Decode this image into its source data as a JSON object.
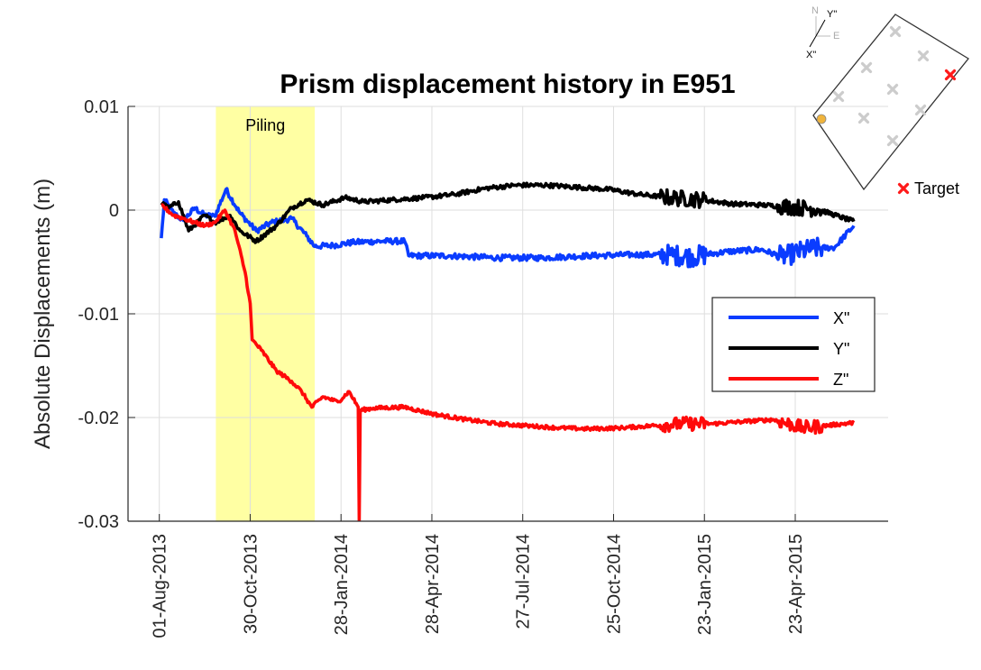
{
  "chart_data": {
    "type": "line",
    "title": "Prism displacement history in E951",
    "ylabel": "Absolute Displacements (m)",
    "xlabel": "",
    "ylim": [
      -0.03,
      0.01
    ],
    "xlim": [
      "2013-07-01",
      "2015-07-24"
    ],
    "yticks": [
      {
        "value": 0.01,
        "label": "0.01"
      },
      {
        "value": 0,
        "label": "0"
      },
      {
        "value": -0.01,
        "label": "-0.01"
      },
      {
        "value": -0.02,
        "label": "-0.02"
      },
      {
        "value": -0.03,
        "label": "-0.03"
      }
    ],
    "xticks": [
      {
        "date": "2013-08-01",
        "label": "01-Aug-2013"
      },
      {
        "date": "2013-10-30",
        "label": "30-Oct-2013"
      },
      {
        "date": "2014-01-28",
        "label": "28-Jan-2014"
      },
      {
        "date": "2014-04-28",
        "label": "28-Apr-2014"
      },
      {
        "date": "2014-07-27",
        "label": "27-Jul-2014"
      },
      {
        "date": "2014-10-25",
        "label": "25-Oct-2014"
      },
      {
        "date": "2015-01-23",
        "label": "23-Jan-2015"
      },
      {
        "date": "2015-04-23",
        "label": "23-Apr-2015"
      }
    ],
    "grid": true,
    "legend_position": "right",
    "shaded_region": {
      "start": "2013-09-26",
      "end": "2014-01-02",
      "label": "Piling",
      "color": "#ffff99"
    },
    "series": [
      {
        "name": "X\"",
        "color": "#0a3cff",
        "noise": 0.0009,
        "points": [
          [
            "2013-08-03",
            -0.0027
          ],
          [
            "2013-08-06",
            0.001
          ],
          [
            "2013-08-15",
            -0.0003
          ],
          [
            "2013-08-25",
            -0.001
          ],
          [
            "2013-09-05",
            0.0002
          ],
          [
            "2013-09-15",
            -0.0005
          ],
          [
            "2013-09-25",
            -0.0006
          ],
          [
            "2013-10-06",
            0.002
          ],
          [
            "2013-10-20",
            -0.0003
          ],
          [
            "2013-11-05",
            -0.002
          ],
          [
            "2013-11-20",
            -0.0012
          ],
          [
            "2013-12-10",
            -0.0008
          ],
          [
            "2013-12-25",
            -0.0025
          ],
          [
            "2014-01-02",
            -0.0035
          ],
          [
            "2014-01-20",
            -0.0034
          ],
          [
            "2014-02-10",
            -0.0031
          ],
          [
            "2014-03-10",
            -0.003
          ],
          [
            "2014-04-01",
            -0.003
          ],
          [
            "2014-04-05",
            -0.0044
          ],
          [
            "2014-05-15",
            -0.0044
          ],
          [
            "2014-07-01",
            -0.0046
          ],
          [
            "2014-08-15",
            -0.0046
          ],
          [
            "2014-10-01",
            -0.0044
          ],
          [
            "2014-11-15",
            -0.0043
          ],
          [
            "2014-12-20",
            -0.0043
          ],
          [
            "2015-01-10",
            -0.0045
          ],
          [
            "2015-02-15",
            -0.004
          ],
          [
            "2015-03-20",
            -0.0038
          ],
          [
            "2015-04-10",
            -0.0045
          ],
          [
            "2015-05-10",
            -0.0037
          ],
          [
            "2015-06-01",
            -0.0036
          ],
          [
            "2015-06-20",
            -0.0015
          ]
        ]
      },
      {
        "name": "Y\"",
        "color": "#000000",
        "noise": 0.0007,
        "points": [
          [
            "2013-08-03",
            0.0007
          ],
          [
            "2013-08-10",
            0.0002
          ],
          [
            "2013-08-20",
            0.0008
          ],
          [
            "2013-08-30",
            -0.002
          ],
          [
            "2013-09-15",
            -0.0005
          ],
          [
            "2013-09-25",
            -0.0012
          ],
          [
            "2013-10-10",
            -0.0005
          ],
          [
            "2013-10-20",
            -0.002
          ],
          [
            "2013-11-05",
            -0.003
          ],
          [
            "2013-11-25",
            -0.0015
          ],
          [
            "2013-12-10",
            0.0002
          ],
          [
            "2013-12-25",
            0.001
          ],
          [
            "2014-01-10",
            0.0005
          ],
          [
            "2014-02-01",
            0.0012
          ],
          [
            "2014-02-20",
            0.0008
          ],
          [
            "2014-03-20",
            0.001
          ],
          [
            "2014-04-20",
            0.0012
          ],
          [
            "2014-05-20",
            0.0015
          ],
          [
            "2014-06-20",
            0.0021
          ],
          [
            "2014-07-20",
            0.0024
          ],
          [
            "2014-08-20",
            0.0024
          ],
          [
            "2014-09-20",
            0.0022
          ],
          [
            "2014-10-20",
            0.002
          ],
          [
            "2014-11-20",
            0.0015
          ],
          [
            "2014-12-20",
            0.0012
          ],
          [
            "2015-01-20",
            0.001
          ],
          [
            "2015-02-20",
            0.0006
          ],
          [
            "2015-03-20",
            0.0005
          ],
          [
            "2015-04-20",
            0.0003
          ],
          [
            "2015-05-15",
            0.0001
          ],
          [
            "2015-06-20",
            -0.0011
          ]
        ]
      },
      {
        "name": "Z\"",
        "color": "#ff0a0a",
        "noise": 0.0006,
        "points": [
          [
            "2013-08-03",
            0.0005
          ],
          [
            "2013-08-15",
            -0.0005
          ],
          [
            "2013-08-25",
            -0.0008
          ],
          [
            "2013-09-05",
            -0.0012
          ],
          [
            "2013-09-15",
            -0.0015
          ],
          [
            "2013-09-25",
            -0.0012
          ],
          [
            "2013-10-05",
            0.0
          ],
          [
            "2013-10-15",
            -0.002
          ],
          [
            "2013-10-25",
            -0.006
          ],
          [
            "2013-10-30",
            -0.009
          ],
          [
            "2013-11-01",
            -0.0125
          ],
          [
            "2013-11-10",
            -0.0135
          ],
          [
            "2013-11-25",
            -0.0155
          ],
          [
            "2013-12-10",
            -0.0165
          ],
          [
            "2013-12-20",
            -0.0175
          ],
          [
            "2013-12-30",
            -0.019
          ],
          [
            "2014-01-10",
            -0.018
          ],
          [
            "2014-01-25",
            -0.0185
          ],
          [
            "2014-02-05",
            -0.0175
          ],
          [
            "2014-02-14",
            -0.019
          ],
          [
            "2014-02-15",
            -0.03
          ],
          [
            "2014-02-16",
            -0.0193
          ],
          [
            "2014-03-01",
            -0.0191
          ],
          [
            "2014-04-01",
            -0.019
          ],
          [
            "2014-05-01",
            -0.0197
          ],
          [
            "2014-06-01",
            -0.0202
          ],
          [
            "2014-07-01",
            -0.0206
          ],
          [
            "2014-08-01",
            -0.0208
          ],
          [
            "2014-09-01",
            -0.021
          ],
          [
            "2014-10-01",
            -0.0211
          ],
          [
            "2014-11-01",
            -0.021
          ],
          [
            "2014-12-01",
            -0.0208
          ],
          [
            "2015-01-01",
            -0.0206
          ],
          [
            "2015-02-01",
            -0.0206
          ],
          [
            "2015-03-01",
            -0.0204
          ],
          [
            "2015-04-01",
            -0.0202
          ],
          [
            "2015-05-01",
            -0.021
          ],
          [
            "2015-06-20",
            -0.0205
          ]
        ]
      }
    ]
  },
  "legend": {
    "items": [
      "X\"",
      "Y\"",
      "Z\""
    ]
  },
  "inset": {
    "compass": {
      "north": "N",
      "east": "E",
      "x_axis": "X\"",
      "y_axis": "Y\""
    },
    "target_label": "Target",
    "target_color": "#ff1a1a",
    "reference_color": "#f0b43c",
    "point_color": "#cccccc"
  }
}
